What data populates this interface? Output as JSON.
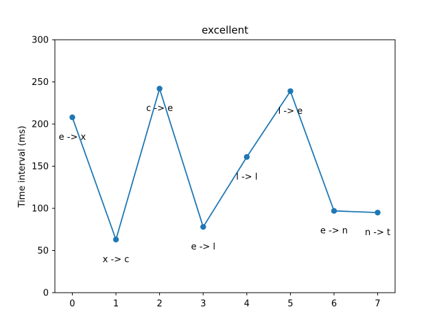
{
  "chart_data": {
    "type": "line",
    "title": "excellent",
    "xlabel": "",
    "ylabel": "Time interval (ms)",
    "x": [
      0,
      1,
      2,
      3,
      4,
      5,
      6,
      7
    ],
    "values": [
      208,
      63,
      242,
      78,
      161,
      239,
      97,
      95
    ],
    "point_labels": [
      "e -> x",
      "x -> c",
      "c -> e",
      "e -> l",
      "l -> l",
      "l -> e",
      "e -> n",
      "n -> t"
    ],
    "xlim": [
      -0.4,
      7.4
    ],
    "ylim": [
      0,
      300
    ],
    "xticks": [
      0,
      1,
      2,
      3,
      4,
      5,
      6,
      7
    ],
    "yticks": [
      0,
      50,
      100,
      150,
      200,
      250,
      300
    ],
    "grid": false,
    "series_color": "#1f77b4"
  }
}
